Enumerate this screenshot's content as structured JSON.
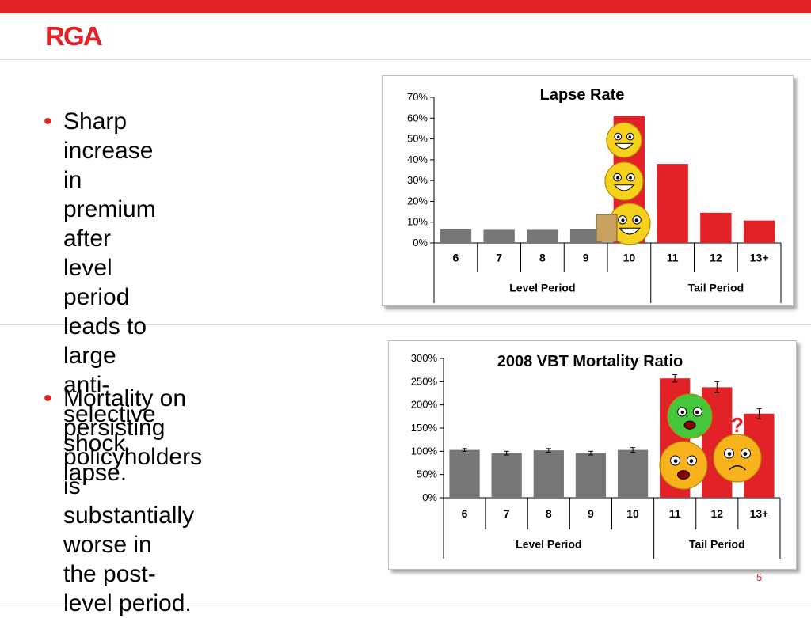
{
  "brand": {
    "logo_text": "RGA",
    "accent": "#e32228"
  },
  "bullets": [
    {
      "lines": [
        "Sharp increase in",
        "premium after level",
        "period leads to large",
        "anti-selective shock",
        "lapse."
      ]
    },
    {
      "lines": [
        "Mortality on persisting",
        "policyholders is",
        "substantially worse in",
        "the post-level period."
      ]
    }
  ],
  "page_number": "5",
  "chart_data": [
    {
      "type": "bar",
      "title": "Lapse Rate",
      "categories": [
        "6",
        "7",
        "8",
        "9",
        "10",
        "11",
        "12",
        "13+"
      ],
      "values": [
        0.065,
        0.063,
        0.063,
        0.067,
        0.61,
        0.38,
        0.145,
        0.108
      ],
      "bar_colors": [
        "#767676",
        "#767676",
        "#767676",
        "#767676",
        "#e32228",
        "#e32228",
        "#e32228",
        "#e32228"
      ],
      "ylim": [
        0,
        0.7
      ],
      "yticks": [
        "0%",
        "10%",
        "20%",
        "30%",
        "40%",
        "50%",
        "60%",
        "70%"
      ],
      "groups": [
        {
          "label": "Level Period",
          "span": 5
        },
        {
          "label": "Tail Period",
          "span": 3
        }
      ],
      "grid": false,
      "legend": "none"
    },
    {
      "type": "bar",
      "title": "2008 VBT Mortality Ratio",
      "categories": [
        "6",
        "7",
        "8",
        "9",
        "10",
        "11",
        "12",
        "13+"
      ],
      "values": [
        1.03,
        0.96,
        1.02,
        0.96,
        1.03,
        2.57,
        2.38,
        1.81
      ],
      "error": [
        0.03,
        0.04,
        0.04,
        0.04,
        0.05,
        0.08,
        0.12,
        0.11
      ],
      "bar_colors": [
        "#767676",
        "#767676",
        "#767676",
        "#767676",
        "#767676",
        "#e32228",
        "#e32228",
        "#e32228"
      ],
      "ylim": [
        0,
        3.0
      ],
      "yticks": [
        "0%",
        "50%",
        "100%",
        "150%",
        "200%",
        "250%",
        "300%"
      ],
      "groups": [
        {
          "label": "Level Period",
          "span": 5
        },
        {
          "label": "Tail Period",
          "span": 3
        }
      ],
      "grid": false,
      "legend": "none"
    }
  ]
}
